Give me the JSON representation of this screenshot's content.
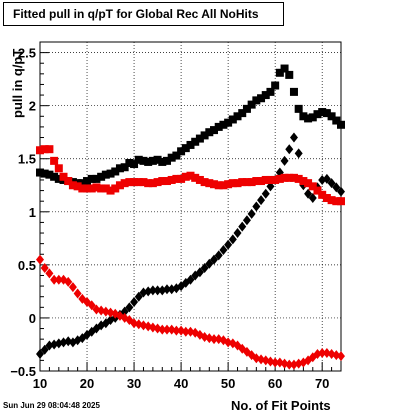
{
  "chart_data": {
    "type": "scatter",
    "title": "Fitted pull in q/pT for Global Rec All NoHits",
    "xlabel": "No. of Fit Points",
    "ylabel": "pull in q/pT",
    "xlim": [
      10,
      74
    ],
    "ylim": [
      -0.5,
      2.6
    ],
    "xticks": [
      10,
      20,
      30,
      40,
      50,
      60,
      70
    ],
    "yticks": [
      -0.5,
      0,
      0.5,
      1,
      1.5,
      2,
      2.5
    ],
    "ytick_labels": [
      "−0.5",
      "0",
      "0.5",
      "1",
      "1.5",
      "2",
      "2.5"
    ],
    "grid": true,
    "x": [
      10,
      11,
      12,
      13,
      14,
      15,
      16,
      17,
      18,
      19,
      20,
      21,
      22,
      23,
      24,
      25,
      26,
      27,
      28,
      29,
      30,
      31,
      32,
      33,
      34,
      35,
      36,
      37,
      38,
      39,
      40,
      41,
      42,
      43,
      44,
      45,
      46,
      47,
      48,
      49,
      50,
      51,
      52,
      53,
      54,
      55,
      56,
      57,
      58,
      59,
      60,
      61,
      62,
      63,
      64,
      65,
      66,
      67,
      68,
      69,
      70,
      71,
      72,
      73,
      74
    ],
    "series": [
      {
        "color": "#000000",
        "marker": "square",
        "values": [
          1.37,
          1.36,
          1.35,
          1.33,
          1.31,
          1.3,
          1.29,
          1.28,
          1.27,
          1.27,
          1.29,
          1.31,
          1.31,
          1.33,
          1.35,
          1.36,
          1.38,
          1.41,
          1.42,
          1.46,
          1.45,
          1.49,
          1.48,
          1.47,
          1.48,
          1.49,
          1.47,
          1.48,
          1.51,
          1.53,
          1.57,
          1.6,
          1.63,
          1.66,
          1.69,
          1.72,
          1.75,
          1.77,
          1.8,
          1.82,
          1.84,
          1.87,
          1.9,
          1.93,
          1.97,
          2.01,
          2.05,
          2.07,
          2.1,
          2.13,
          2.19,
          2.31,
          2.35,
          2.29,
          2.13,
          1.97,
          1.9,
          1.88,
          1.89,
          1.92,
          1.94,
          1.93,
          1.9,
          1.86,
          1.82
        ]
      },
      {
        "color": "#000000",
        "marker": "diamond",
        "values": [
          -0.34,
          -0.3,
          -0.26,
          -0.25,
          -0.24,
          -0.23,
          -0.22,
          -0.23,
          -0.21,
          -0.19,
          -0.16,
          -0.13,
          -0.1,
          -0.07,
          -0.05,
          -0.02,
          0.0,
          0.03,
          0.06,
          0.1,
          0.15,
          0.2,
          0.24,
          0.25,
          0.26,
          0.26,
          0.26,
          0.27,
          0.27,
          0.28,
          0.3,
          0.33,
          0.36,
          0.4,
          0.43,
          0.47,
          0.51,
          0.55,
          0.59,
          0.64,
          0.69,
          0.74,
          0.8,
          0.86,
          0.92,
          0.98,
          1.05,
          1.11,
          1.17,
          1.24,
          1.3,
          1.37,
          1.48,
          1.59,
          1.7,
          1.55,
          1.25,
          1.17,
          1.13,
          1.23,
          1.3,
          1.31,
          1.27,
          1.23,
          1.19
        ]
      },
      {
        "color": "#ee0000",
        "marker": "square",
        "values": [
          1.58,
          1.59,
          1.59,
          1.48,
          1.41,
          1.33,
          1.29,
          1.25,
          1.24,
          1.22,
          1.22,
          1.22,
          1.23,
          1.22,
          1.22,
          1.2,
          1.22,
          1.25,
          1.27,
          1.28,
          1.28,
          1.28,
          1.28,
          1.27,
          1.27,
          1.28,
          1.29,
          1.29,
          1.3,
          1.31,
          1.31,
          1.33,
          1.34,
          1.32,
          1.3,
          1.28,
          1.27,
          1.26,
          1.25,
          1.25,
          1.26,
          1.27,
          1.27,
          1.28,
          1.28,
          1.28,
          1.29,
          1.29,
          1.3,
          1.3,
          1.3,
          1.31,
          1.32,
          1.32,
          1.32,
          1.31,
          1.29,
          1.27,
          1.24,
          1.2,
          1.16,
          1.13,
          1.11,
          1.1,
          1.1
        ]
      },
      {
        "color": "#ee0000",
        "marker": "diamond",
        "values": [
          0.55,
          0.47,
          0.42,
          0.36,
          0.36,
          0.36,
          0.34,
          0.29,
          0.23,
          0.18,
          0.15,
          0.12,
          0.08,
          0.07,
          0.06,
          0.05,
          0.04,
          0.02,
          0.0,
          -0.02,
          -0.05,
          -0.06,
          -0.07,
          -0.08,
          -0.09,
          -0.1,
          -0.11,
          -0.11,
          -0.11,
          -0.12,
          -0.12,
          -0.13,
          -0.13,
          -0.14,
          -0.16,
          -0.18,
          -0.19,
          -0.2,
          -0.2,
          -0.21,
          -0.23,
          -0.24,
          -0.26,
          -0.29,
          -0.32,
          -0.35,
          -0.38,
          -0.39,
          -0.4,
          -0.41,
          -0.42,
          -0.42,
          -0.43,
          -0.44,
          -0.44,
          -0.43,
          -0.42,
          -0.4,
          -0.37,
          -0.34,
          -0.33,
          -0.33,
          -0.34,
          -0.35,
          -0.36
        ]
      }
    ]
  },
  "footer": {
    "timestamp": "Sun Jun 29 08:04:48 2025"
  }
}
